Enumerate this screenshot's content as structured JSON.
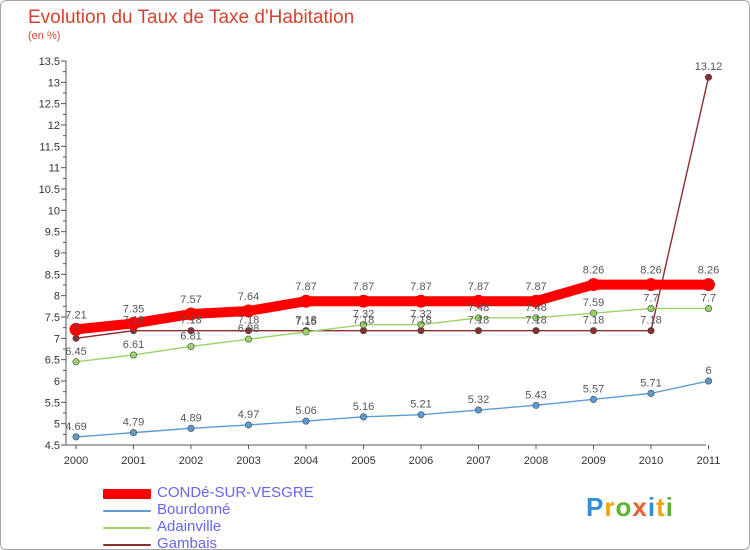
{
  "header": {
    "title": "Evolution du Taux de Taxe d'Habitation",
    "unit": "(en %)"
  },
  "logo": {
    "text": "Proxiti",
    "colors": [
      "#2f8fd8",
      "#f2a20c",
      "#5cb531",
      "#ec5e2a",
      "#2f8fd8",
      "#f2a20c",
      "#5cb531"
    ]
  },
  "chart_data": {
    "type": "line",
    "x": [
      "2000",
      "2001",
      "2002",
      "2003",
      "2004",
      "2005",
      "2006",
      "2007",
      "2008",
      "2009",
      "2010",
      "2011"
    ],
    "ylim": [
      4.5,
      13.5
    ],
    "yticks": [
      "4.5",
      "5",
      "5.5",
      "6",
      "6.5",
      "7",
      "7.5",
      "8",
      "8.5",
      "9",
      "9.5",
      "10",
      "10.5",
      "11",
      "11.5",
      "12",
      "12.5",
      "13",
      "13.5"
    ],
    "grid": false,
    "legend_position": "bottom-left",
    "series": [
      {
        "name": "CONDé-SUR-VESGRE",
        "color": "#ff0000",
        "values": [
          7.21,
          7.35,
          7.57,
          7.64,
          7.87,
          7.87,
          7.87,
          7.87,
          7.87,
          8.26,
          8.26,
          8.26
        ],
        "labels": [
          "7.21",
          "7.35",
          "7.57",
          "7.64",
          "7.87",
          "7.87",
          "7.87",
          "7.87",
          "7.87",
          "8.26",
          "8.26",
          "8.26"
        ]
      },
      {
        "name": "Bourdonné",
        "color": "#5b9bd5",
        "values": [
          4.69,
          4.79,
          4.89,
          4.97,
          5.06,
          5.16,
          5.21,
          5.32,
          5.43,
          5.57,
          5.71,
          6
        ],
        "labels": [
          "4.69",
          "4.79",
          "4.89",
          "4.97",
          "5.06",
          "5.16",
          "5.21",
          "5.32",
          "5.43",
          "5.57",
          "5.71",
          "6"
        ]
      },
      {
        "name": "Adainville",
        "color": "#99d566",
        "values": [
          6.45,
          6.61,
          6.81,
          6.98,
          7.15,
          7.32,
          7.32,
          7.48,
          7.48,
          7.59,
          7.7,
          7.7
        ],
        "labels": [
          "6.45",
          "6.61",
          "6.81",
          "6.98",
          "7.15",
          "7.32",
          "7.32",
          "7.48",
          "7.48",
          "7.59",
          "7.7",
          "7.7"
        ]
      },
      {
        "name": "Gambais",
        "color": "#8b2e2e",
        "values": [
          7,
          7.18,
          7.18,
          7.18,
          7.18,
          7.18,
          7.18,
          7.18,
          7.18,
          7.18,
          7.18,
          13.12
        ],
        "labels": [
          "7",
          "7.18",
          "7.18",
          "7.18",
          "7.18",
          "7.18",
          "7.18",
          "7.18",
          "7.18",
          "7.18",
          "7.18",
          "13.12"
        ]
      }
    ]
  }
}
